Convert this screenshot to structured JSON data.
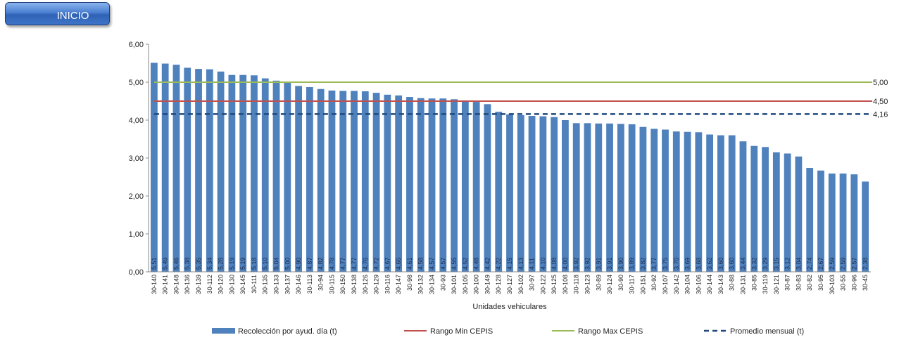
{
  "header": {
    "inicio_label": "INICIO"
  },
  "chart_data": {
    "type": "bar",
    "xlabel": "Unidades vehiculares",
    "ylabel": "",
    "ylim": [
      0,
      6
    ],
    "yticks": [
      "0,00",
      "1,00",
      "2,00",
      "3,00",
      "4,00",
      "5,00",
      "6,00"
    ],
    "grid": false,
    "legend_position": "bottom",
    "categories": [
      "30-140",
      "30-141",
      "30-148",
      "30-136",
      "30-139",
      "30-112",
      "30-120",
      "30-130",
      "30-145",
      "30-111",
      "30-135",
      "30-133",
      "30-137",
      "30-146",
      "30-113",
      "30-94",
      "30-115",
      "30-150",
      "30-138",
      "30-126",
      "30-129",
      "30-116",
      "30-147",
      "30-98",
      "30-132",
      "30-134",
      "30-93",
      "30-101",
      "30-105",
      "30-100",
      "30-149",
      "30-128",
      "30-127",
      "30-102",
      "30-97",
      "30-122",
      "30-125",
      "30-108",
      "30-118",
      "30-123",
      "30-89",
      "30-124",
      "30-90",
      "30-117",
      "30-151",
      "30-92",
      "30-107",
      "30-142",
      "30-104",
      "30-106",
      "30-144",
      "30-143",
      "30-88",
      "30-131",
      "30-85",
      "30-119",
      "30-121",
      "30-87",
      "30-83",
      "30-82",
      "30-95",
      "30-103",
      "30-55",
      "30-96",
      "30-45"
    ],
    "series": [
      {
        "name": "Recolección por ayud. día (t)",
        "color": "#4f81bd",
        "values": [
          5.51,
          5.49,
          5.46,
          5.38,
          5.35,
          5.34,
          5.28,
          5.19,
          5.19,
          5.18,
          5.1,
          5.04,
          5.0,
          4.9,
          4.87,
          4.82,
          4.78,
          4.77,
          4.77,
          4.76,
          4.72,
          4.67,
          4.65,
          4.61,
          4.58,
          4.57,
          4.57,
          4.55,
          4.52,
          4.48,
          4.42,
          4.22,
          4.15,
          4.13,
          4.11,
          4.1,
          4.08,
          4.0,
          3.92,
          3.92,
          3.91,
          3.91,
          3.9,
          3.89,
          3.82,
          3.77,
          3.75,
          3.7,
          3.69,
          3.68,
          3.62,
          3.6,
          3.6,
          3.44,
          3.32,
          3.29,
          3.15,
          3.12,
          3.04,
          2.74,
          2.67,
          2.59,
          2.59,
          2.57,
          2.38
        ],
        "value_labels": [
          "5,51",
          "5,49",
          "5,46",
          "5,38",
          "5,35",
          "5,34",
          "5,28",
          "5,19",
          "5,19",
          "5,18",
          "5,10",
          "5,04",
          "5,00",
          "4,90",
          "4,87",
          "4,82",
          "4,78",
          "4,77",
          "4,77",
          "4,76",
          "4,72",
          "4,67",
          "4,65",
          "4,61",
          "4,58",
          "4,57",
          "4,57",
          "4,55",
          "4,52",
          "4,48",
          "4,42",
          "4,22",
          "4,15",
          "4,13",
          "4,11",
          "4,10",
          "4,08",
          "4,00",
          "3,92",
          "3,92",
          "3,91",
          "3,91",
          "3,90",
          "3,89",
          "3,82",
          "3,77",
          "3,75",
          "3,70",
          "3,69",
          "3,68",
          "3,62",
          "3,60",
          "3,60",
          "3,44",
          "3,32",
          "3,29",
          "3,15",
          "3,12",
          "3,04",
          "2,74",
          "2,67",
          "2,59",
          "2,59",
          "2,57",
          "2,38"
        ]
      }
    ],
    "lines": [
      {
        "name": "Rango Min CEPIS",
        "value": 4.5,
        "label": "4,50",
        "color": "#c0504d",
        "dashed": false
      },
      {
        "name": "Rango Max CEPIS",
        "value": 5.0,
        "label": "5,00",
        "color": "#9bbb59",
        "dashed": false
      },
      {
        "name": "Promedio mensual (t)",
        "value": 4.16,
        "label": "4,16",
        "color": "#1f497d",
        "dashed": true
      }
    ]
  }
}
